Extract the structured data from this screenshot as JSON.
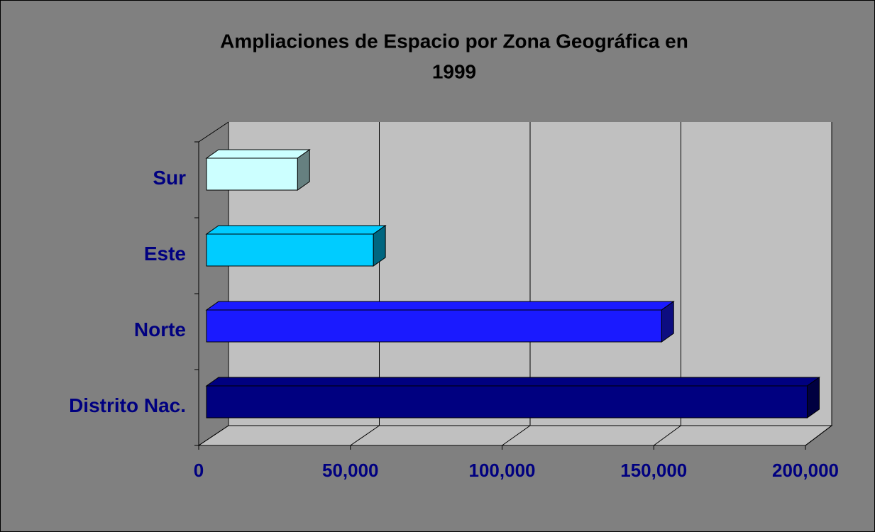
{
  "chart_data": {
    "type": "bar3d_horizontal",
    "title": "Ampliaciones de Espacio por Zona Geográfica en",
    "subtitle": "1999",
    "categories": [
      "Distrito Nac.",
      "Norte",
      "Este",
      "Sur"
    ],
    "values": [
      198000,
      150000,
      55000,
      30000
    ],
    "colors": [
      "#000080",
      "#1a1aff",
      "#00ccff",
      "#ccffff"
    ],
    "xlim": [
      0,
      200000
    ],
    "xticks": [
      0,
      {
        "value": 50000,
        "label": "50,000"
      },
      {
        "value": 100000,
        "label": "100,000"
      },
      {
        "value": 150000,
        "label": "150,000"
      },
      {
        "value": 200000,
        "label": "200,000"
      }
    ],
    "grid": true
  }
}
